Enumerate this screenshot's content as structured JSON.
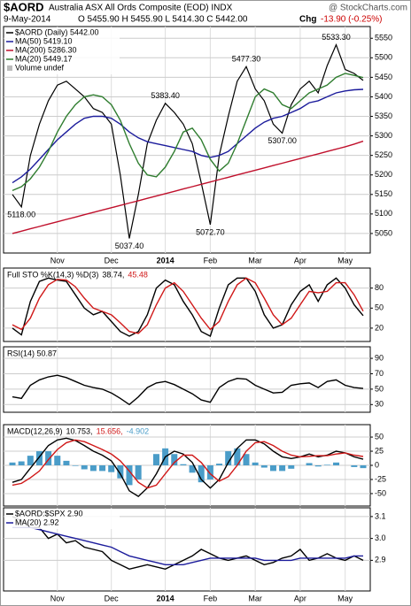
{
  "header": {
    "symbol": "$AORD",
    "name": "Australia ASX All Ords Composite (EOD) INDX",
    "watermark": "@ StockCharts.com",
    "date": "9-May-2014",
    "ohlc": "O 5455.90  H 5455.90  L 5414.30  C 5442.00",
    "change_label": "Chg",
    "change": "-13.90 (-0.25%)"
  },
  "chart_data": [
    {
      "type": "line",
      "legend": "stacked",
      "legend_extra": "Volume undef",
      "grid": true,
      "categories": [
        null,
        null,
        null,
        null,
        null,
        "Nov",
        null,
        null,
        null,
        null,
        null,
        "Dec",
        null,
        null,
        null,
        null,
        null,
        "2014",
        null,
        null,
        null,
        null,
        "Feb",
        null,
        null,
        null,
        null,
        "Mar",
        null,
        null,
        null,
        null,
        "Apr",
        null,
        null,
        null,
        null,
        "May",
        null,
        null
      ],
      "ylim": [
        5000,
        5580
      ],
      "yticks": [
        5050,
        5100,
        5150,
        5200,
        5250,
        5300,
        5350,
        5400,
        5450,
        5500,
        5550
      ],
      "series": [
        {
          "name": "$AORD (Daily) 5442.00",
          "color": "#000000",
          "kind": "line",
          "values": [
            5150,
            5118,
            5250,
            5330,
            5390,
            5430,
            5440,
            5420,
            5400,
            5370,
            5360,
            5330,
            5200,
            5037.4,
            5150,
            5280,
            5340,
            5383.4,
            5360,
            5330,
            5280,
            5180,
            5072.7,
            5250,
            5350,
            5440,
            5477.3,
            5420,
            5390,
            5330,
            5307,
            5380,
            5420,
            5440,
            5410,
            5480,
            5533.3,
            5470,
            5460,
            5442
          ],
          "value_labels": [
            null,
            "5118.00",
            null,
            null,
            null,
            null,
            null,
            null,
            null,
            null,
            null,
            null,
            null,
            "5037.40",
            null,
            null,
            null,
            "5383.40",
            null,
            null,
            null,
            null,
            "5072.70",
            null,
            null,
            null,
            "5477.30",
            null,
            null,
            null,
            "5307.00",
            null,
            null,
            null,
            null,
            null,
            "5533.30",
            null,
            null,
            null
          ]
        },
        {
          "name": "MA(50) 5419.10",
          "color": "#1c1c9c",
          "kind": "line",
          "values": [
            5180,
            5195,
            5215,
            5240,
            5265,
            5290,
            5310,
            5330,
            5345,
            5350,
            5350,
            5345,
            5330,
            5310,
            5295,
            5285,
            5280,
            5275,
            5270,
            5265,
            5260,
            5250,
            5245,
            5250,
            5260,
            5280,
            5300,
            5320,
            5335,
            5345,
            5350,
            5360,
            5370,
            5385,
            5390,
            5400,
            5410,
            5415,
            5418,
            5419.1
          ]
        },
        {
          "name": "MA(200) 5286.30",
          "color": "#c0102c",
          "kind": "line",
          "values": [
            5050,
            5056,
            5062,
            5068,
            5074,
            5080,
            5086,
            5092,
            5098,
            5104,
            5110,
            5116,
            5122,
            5128,
            5134,
            5140,
            5146,
            5152,
            5158,
            5164,
            5170,
            5176,
            5182,
            5188,
            5194,
            5200,
            5206,
            5212,
            5218,
            5224,
            5230,
            5236,
            5242,
            5248,
            5254,
            5260,
            5266,
            5272,
            5279,
            5286.3
          ]
        },
        {
          "name": "MA(20) 5449.17",
          "color": "#2f7d2f",
          "kind": "line",
          "values": [
            5160,
            5170,
            5190,
            5220,
            5260,
            5310,
            5350,
            5380,
            5400,
            5405,
            5400,
            5380,
            5340,
            5280,
            5230,
            5200,
            5195,
            5220,
            5260,
            5310,
            5320,
            5290,
            5240,
            5210,
            5230,
            5280,
            5340,
            5400,
            5420,
            5410,
            5380,
            5370,
            5390,
            5410,
            5420,
            5430,
            5450,
            5460,
            5455,
            5449.17
          ]
        }
      ]
    },
    {
      "type": "line",
      "legend": "inline",
      "title": "Full STO %K(14,3) %D(3)",
      "grid": true,
      "ylim": [
        0,
        110
      ],
      "yticks": [
        20,
        50,
        80
      ],
      "series": [
        {
          "name": "38.74,",
          "color": "#000000",
          "kind": "line",
          "values": [
            20,
            10,
            60,
            90,
            95,
            92,
            90,
            70,
            50,
            40,
            45,
            30,
            15,
            8,
            15,
            40,
            80,
            92,
            85,
            60,
            40,
            15,
            8,
            50,
            85,
            95,
            95,
            75,
            40,
            20,
            25,
            55,
            75,
            85,
            60,
            85,
            95,
            80,
            55,
            38.74
          ]
        },
        {
          "name": "45.48",
          "color": "#d01818",
          "kind": "line",
          "values": [
            25,
            18,
            35,
            65,
            85,
            93,
            92,
            82,
            65,
            50,
            45,
            40,
            28,
            15,
            12,
            25,
            55,
            80,
            88,
            75,
            55,
            35,
            18,
            30,
            60,
            85,
            95,
            88,
            65,
            40,
            25,
            35,
            55,
            75,
            73,
            75,
            88,
            88,
            70,
            45.48
          ]
        }
      ]
    },
    {
      "type": "line",
      "legend": "inline",
      "grid": true,
      "ylim": [
        20,
        105
      ],
      "yticks": [
        30,
        50,
        70,
        90
      ],
      "series": [
        {
          "name": "RSI(14) 50.87",
          "color": "#000000",
          "kind": "line",
          "values": [
            40,
            38,
            55,
            62,
            66,
            68,
            65,
            60,
            55,
            52,
            50,
            45,
            38,
            30,
            40,
            52,
            58,
            60,
            56,
            50,
            44,
            36,
            33,
            52,
            60,
            64,
            63,
            55,
            50,
            45,
            46,
            55,
            57,
            58,
            52,
            60,
            62,
            55,
            52,
            50.87
          ]
        }
      ]
    },
    {
      "type": "combo",
      "legend": "inline",
      "title": "MACD(12,26,9)",
      "grid": true,
      "ylim": [
        -72,
        72
      ],
      "yticks": [
        -50,
        -25,
        0,
        25,
        50
      ],
      "series": [
        {
          "name": "-4.902",
          "color": "#4a9cc8",
          "kind": "bar",
          "values": [
            5,
            7,
            17,
            25,
            25,
            17,
            8,
            -1,
            -7,
            -10,
            -10,
            -12,
            -23,
            -35,
            -25,
            0,
            20,
            30,
            20,
            2,
            -13,
            -30,
            -25,
            3,
            25,
            30,
            20,
            5,
            -4,
            -10,
            -10,
            -6,
            0,
            4,
            -2,
            1,
            5,
            0,
            -3,
            -4.902
          ]
        },
        {
          "name": "10.753,",
          "color": "#000000",
          "kind": "line",
          "values": [
            -30,
            -25,
            -5,
            15,
            35,
            45,
            48,
            44,
            35,
            25,
            18,
            8,
            -15,
            -45,
            -55,
            -40,
            -15,
            15,
            25,
            20,
            5,
            -25,
            -40,
            -25,
            5,
            30,
            45,
            45,
            38,
            25,
            15,
            12,
            15,
            20,
            15,
            18,
            25,
            22,
            15,
            10.753
          ]
        },
        {
          "name": "15.656,",
          "color": "#d01818",
          "kind": "line",
          "values": [
            -35,
            -32,
            -22,
            -10,
            10,
            28,
            40,
            45,
            42,
            35,
            28,
            20,
            8,
            -10,
            -30,
            -40,
            -35,
            -15,
            5,
            18,
            18,
            5,
            -15,
            -28,
            -20,
            0,
            25,
            40,
            42,
            35,
            25,
            18,
            15,
            16,
            17,
            17,
            20,
            22,
            18,
            15.656
          ]
        }
      ]
    },
    {
      "type": "line",
      "legend": "stacked",
      "grid": true,
      "categories": [
        null,
        null,
        null,
        null,
        null,
        "Nov",
        null,
        null,
        null,
        null,
        null,
        "Dec",
        null,
        null,
        null,
        null,
        null,
        "2014",
        null,
        null,
        null,
        null,
        "Feb",
        null,
        null,
        null,
        null,
        "Mar",
        null,
        null,
        null,
        null,
        "Apr",
        null,
        null,
        null,
        null,
        "May",
        null,
        null
      ],
      "ylim": [
        2.76,
        3.14
      ],
      "yticks": [
        2.9,
        {
          "value": 3,
          "label": "3.0"
        },
        3.1
      ],
      "series": [
        {
          "name": "$AORD:$SPX 2.90",
          "color": "#000000",
          "kind": "line",
          "values": [
            3.1,
            3.08,
            3.05,
            3.05,
            3.0,
            3.02,
            2.98,
            2.99,
            2.96,
            2.95,
            2.94,
            2.9,
            2.88,
            2.86,
            2.87,
            2.88,
            2.87,
            2.86,
            2.88,
            2.9,
            2.92,
            2.95,
            2.93,
            2.91,
            2.9,
            2.91,
            2.92,
            2.9,
            2.88,
            2.89,
            2.91,
            2.92,
            2.95,
            2.9,
            2.91,
            2.93,
            2.91,
            2.9,
            2.92,
            2.9
          ]
        },
        {
          "name": "MA(20) 2.92",
          "color": "#1c1c9c",
          "kind": "line",
          "values": [
            3.05,
            3.05,
            3.05,
            3.04,
            3.03,
            3.02,
            3.01,
            3.0,
            2.99,
            2.98,
            2.97,
            2.96,
            2.94,
            2.92,
            2.91,
            2.9,
            2.89,
            2.88,
            2.88,
            2.88,
            2.89,
            2.9,
            2.91,
            2.91,
            2.91,
            2.91,
            2.91,
            2.91,
            2.9,
            2.9,
            2.9,
            2.9,
            2.91,
            2.91,
            2.91,
            2.91,
            2.91,
            2.91,
            2.92,
            2.92
          ]
        }
      ]
    }
  ]
}
